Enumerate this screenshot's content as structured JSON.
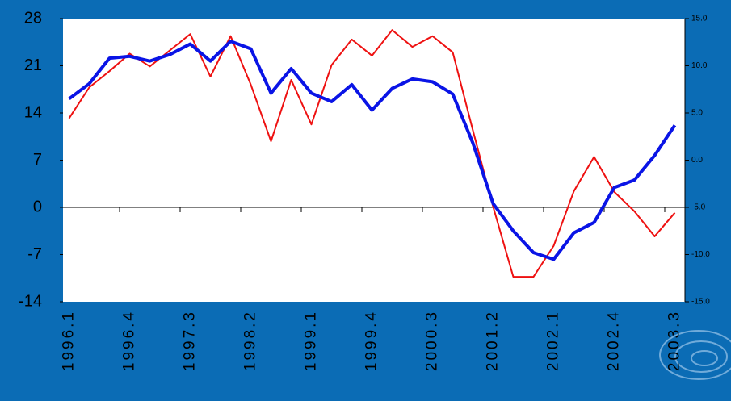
{
  "chart_data": {
    "type": "line",
    "categories": [
      "1996.1",
      null,
      null,
      "1996.4",
      null,
      null,
      "1997.3",
      null,
      null,
      "1998.2",
      null,
      null,
      "1999.1",
      null,
      null,
      "1999.4",
      null,
      null,
      "2000.3",
      null,
      null,
      "2001.2",
      null,
      null,
      "2002.1",
      null,
      null,
      "2002.4",
      null,
      null,
      "2003.3"
    ],
    "series": [
      {
        "color": "#ee1111",
        "width": 2,
        "values": [
          13.2,
          17.8,
          20.2,
          22.8,
          20.9,
          23.3,
          25.7,
          19.4,
          25.4,
          18.2,
          9.8,
          18.9,
          12.3,
          21.1,
          24.9,
          22.5,
          26.3,
          23.8,
          25.4,
          23.0,
          11.4,
          0.1,
          -10.3,
          -10.3,
          -5.7,
          2.4,
          7.5,
          2.3,
          -0.6,
          -4.3,
          -0.8
        ]
      },
      {
        "color": "#0a14e6",
        "width": 4,
        "axis": "y2",
        "values": [
          6.5,
          8.1,
          10.8,
          11.0,
          10.5,
          11.2,
          12.3,
          10.5,
          12.6,
          11.8,
          7.1,
          9.7,
          7.1,
          6.2,
          8.0,
          5.3,
          7.6,
          8.6,
          8.3,
          7.0,
          1.8,
          -4.6,
          -7.5,
          -9.8,
          -10.5,
          -7.7,
          -6.6,
          -2.9,
          -2.1,
          0.5,
          3.7
        ]
      }
    ],
    "ylim": [
      -14,
      28
    ],
    "yticks": [
      -14,
      -7,
      0,
      7,
      14,
      21,
      28
    ],
    "y2lim": [
      -15,
      15
    ],
    "y2ticks": [
      {
        "value": -15,
        "label": "-15.0"
      },
      {
        "value": -10,
        "label": "-10.0"
      },
      {
        "value": -5,
        "label": "-5.0"
      },
      {
        "value": 0,
        "label": "0.0"
      },
      {
        "value": 5,
        "label": "5.0"
      },
      {
        "value": 10,
        "label": "10.0"
      },
      {
        "value": 15,
        "label": "15.0"
      }
    ]
  }
}
